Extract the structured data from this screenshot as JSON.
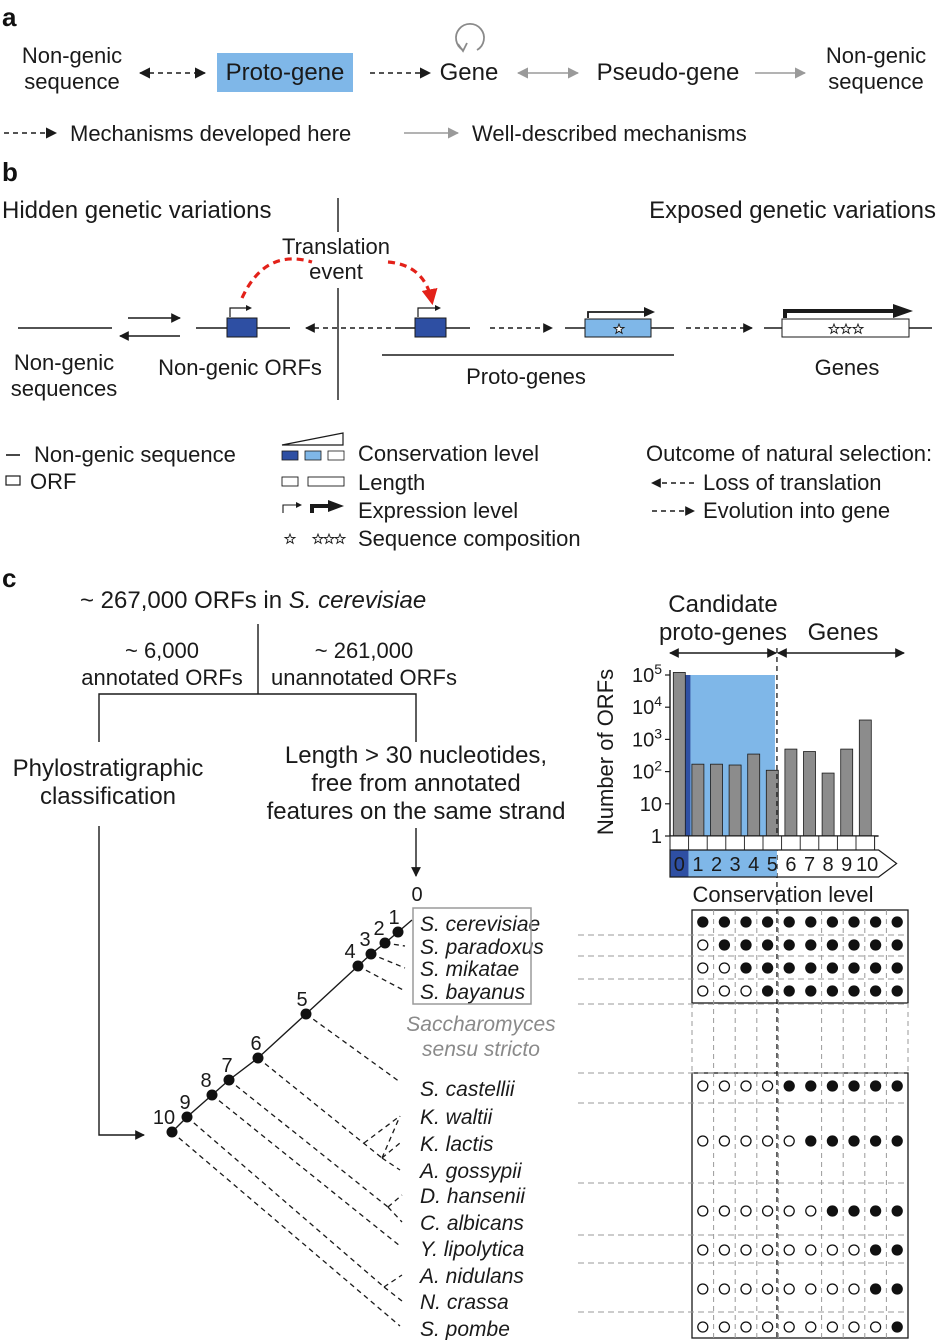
{
  "panel_a": {
    "label": "a",
    "flow": {
      "non_genic_left": [
        "Non-genic",
        "sequence"
      ],
      "proto_gene": "Proto-gene",
      "gene": "Gene",
      "pseudo_gene": "Pseudo-gene",
      "non_genic_right": [
        "Non-genic",
        "sequence"
      ]
    },
    "legend": {
      "dashed": "Mechanisms developed here",
      "solid": "Well-described mechanisms"
    },
    "colors": {
      "proto_gene_fill": "#7fb7e8"
    }
  },
  "panel_b": {
    "label": "b",
    "hidden": "Hidden genetic variations",
    "exposed": "Exposed genetic variations",
    "translation_event": [
      "Translation",
      "event"
    ],
    "non_genic_sequences": [
      "Non-genic",
      "sequences"
    ],
    "non_genic_orfs": "Non-genic ORFs",
    "proto_genes": "Proto-genes",
    "genes": "Genes",
    "legend": {
      "non_genic_sequence": "Non-genic sequence",
      "orf": "ORF",
      "conservation_level": "Conservation level",
      "length": "Length",
      "expression_level": "Expression level",
      "sequence_composition": "Sequence composition",
      "outcome_title": "Outcome of natural selection:",
      "loss": "Loss of translation",
      "evolution": "Evolution into gene"
    },
    "colors": {
      "dark_blue": "#2e4fa3",
      "light_blue": "#7fb7e8",
      "red": "#e32119"
    }
  },
  "panel_c": {
    "label": "c",
    "top": "~ 267,000 ORFs in",
    "top_species": "S. cerevisiae",
    "annotated": [
      "~ 6,000",
      "annotated ORFs"
    ],
    "unannotated": [
      "~ 261,000",
      "unannotated ORFs"
    ],
    "phylo": [
      "Phylostratigraphic",
      "classification"
    ],
    "length_filter": [
      "Length > 30 nucleotides,",
      "free from annotated",
      "features on the same strand"
    ],
    "root_label": "0",
    "node_labels": [
      "1",
      "2",
      "3",
      "4",
      "5",
      "6",
      "7",
      "8",
      "9",
      "10"
    ],
    "species": [
      "S. cerevisiae",
      "S. paradoxus",
      "S. mikatae",
      "S. bayanus",
      "S. castellii",
      "K. waltii",
      "K. lactis",
      "A. gossypii",
      "D. hansenii",
      "C. albicans",
      "Y. lipolytica",
      "A. nidulans",
      "N. crassa",
      "S. pombe"
    ],
    "sensu_stricto": [
      "Saccharomyces",
      "sensu stricto"
    ],
    "header_candidates": [
      "Candidate",
      "proto-genes"
    ],
    "header_genes": "Genes",
    "conservation_label": "Conservation level",
    "dot_rows": [
      {
        "species": "S. cerevisiae",
        "filled": [
          1,
          1,
          1,
          1,
          1,
          1,
          1,
          1,
          1,
          1
        ]
      },
      {
        "species": "S. paradoxus",
        "filled": [
          0,
          1,
          1,
          1,
          1,
          1,
          1,
          1,
          1,
          1
        ]
      },
      {
        "species": "S. mikatae",
        "filled": [
          0,
          0,
          1,
          1,
          1,
          1,
          1,
          1,
          1,
          1
        ]
      },
      {
        "species": "S. bayanus",
        "filled": [
          0,
          0,
          0,
          1,
          1,
          1,
          1,
          1,
          1,
          1
        ]
      },
      {
        "species": "S. castellii",
        "filled": [
          0,
          0,
          0,
          0,
          1,
          1,
          1,
          1,
          1,
          1
        ]
      },
      {
        "species": "K. lactis",
        "filled": [
          0,
          0,
          0,
          0,
          0,
          1,
          1,
          1,
          1,
          1
        ]
      },
      {
        "species": "C. albicans",
        "filled": [
          0,
          0,
          0,
          0,
          0,
          0,
          1,
          1,
          1,
          1
        ]
      },
      {
        "species": "Y. lipolytica",
        "filled": [
          0,
          0,
          0,
          0,
          0,
          0,
          0,
          0,
          1,
          1
        ]
      },
      {
        "species": "A. nidulans",
        "filled": [
          0,
          0,
          0,
          0,
          0,
          0,
          0,
          0,
          1,
          1
        ]
      },
      {
        "species": "S. pombe",
        "filled": [
          0,
          0,
          0,
          0,
          0,
          0,
          0,
          0,
          0,
          1
        ]
      }
    ]
  },
  "chart_data": {
    "type": "bar",
    "categories": [
      "0",
      "1",
      "2",
      "3",
      "4",
      "5",
      "6",
      "7",
      "8",
      "9",
      "10"
    ],
    "values": [
      120000,
      170,
      170,
      160,
      350,
      110,
      500,
      420,
      90,
      500,
      4000
    ],
    "ylabel": "Number of ORFs",
    "xlabel": "Conservation level",
    "ytick_labels": [
      "1",
      "10",
      "10^2",
      "10^3",
      "10^4",
      "10^5"
    ],
    "yscale": "log",
    "ylim": [
      1,
      100000
    ],
    "grid": false,
    "colors": {
      "bar": "#8c8c8c",
      "proto_region": "#7fb7e8",
      "level0": "#2e4fa3"
    }
  }
}
